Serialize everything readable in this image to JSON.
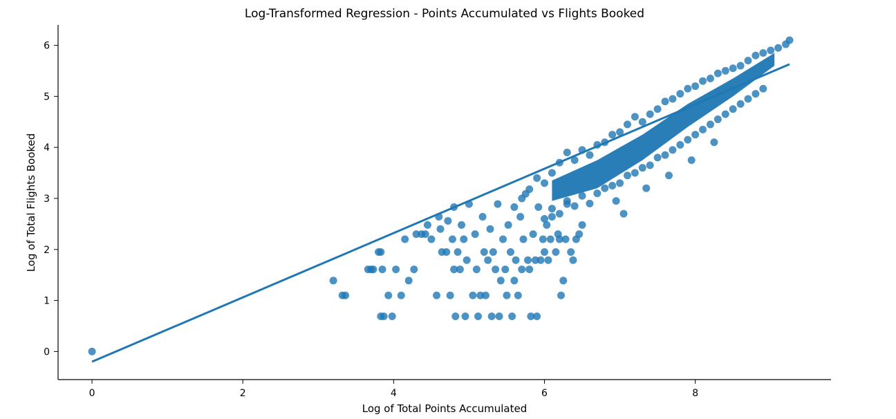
{
  "chart_data": {
    "type": "scatter",
    "title": "Log-Transformed Regression - Points Accumulated vs Flights Booked",
    "xlabel": "Log of Total Points Accumulated",
    "ylabel": "Log of Total Flights Booked",
    "xlim": [
      -0.45,
      9.8
    ],
    "ylim": [
      -0.55,
      6.4
    ],
    "x_ticks": [
      0,
      2,
      4,
      6,
      8
    ],
    "y_ticks": [
      0,
      1,
      2,
      3,
      4,
      5,
      6
    ],
    "grid": false,
    "legend": "none",
    "series": [
      {
        "marker_color": "#1f77b4",
        "marker_opacity": 0.8,
        "points": [
          [
            0,
            0
          ],
          [
            3.2,
            1.39
          ],
          [
            3.32,
            1.1
          ],
          [
            3.36,
            1.1
          ],
          [
            3.66,
            1.61
          ],
          [
            3.7,
            1.61
          ],
          [
            3.73,
            1.61
          ],
          [
            3.8,
            1.95
          ],
          [
            3.83,
            1.95
          ],
          [
            3.83,
            0.69
          ],
          [
            3.87,
            0.69
          ],
          [
            3.98,
            0.69
          ],
          [
            3.85,
            1.61
          ],
          [
            3.93,
            1.1
          ],
          [
            4.03,
            1.61
          ],
          [
            4.1,
            1.1
          ],
          [
            4.15,
            2.2
          ],
          [
            4.2,
            1.39
          ],
          [
            4.27,
            1.61
          ],
          [
            4.3,
            2.3
          ],
          [
            4.37,
            2.3
          ],
          [
            4.42,
            2.3
          ],
          [
            4.45,
            2.48
          ],
          [
            4.5,
            2.2
          ],
          [
            4.57,
            1.1
          ],
          [
            4.6,
            2.64
          ],
          [
            4.62,
            2.4
          ],
          [
            4.64,
            1.95
          ],
          [
            4.7,
            1.95
          ],
          [
            4.72,
            2.56
          ],
          [
            4.75,
            1.1
          ],
          [
            4.78,
            2.2
          ],
          [
            4.8,
            1.61
          ],
          [
            4.8,
            2.83
          ],
          [
            4.82,
            0.69
          ],
          [
            4.85,
            1.95
          ],
          [
            4.88,
            1.61
          ],
          [
            4.9,
            2.48
          ],
          [
            4.93,
            2.2
          ],
          [
            4.95,
            0.69
          ],
          [
            4.97,
            1.79
          ],
          [
            5.0,
            2.89
          ],
          [
            5.05,
            1.1
          ],
          [
            5.08,
            2.3
          ],
          [
            5.1,
            1.61
          ],
          [
            5.12,
            0.69
          ],
          [
            5.15,
            1.1
          ],
          [
            5.18,
            2.64
          ],
          [
            5.2,
            1.95
          ],
          [
            5.22,
            1.1
          ],
          [
            5.25,
            1.79
          ],
          [
            5.28,
            2.4
          ],
          [
            5.3,
            0.69
          ],
          [
            5.32,
            1.95
          ],
          [
            5.35,
            1.61
          ],
          [
            5.38,
            2.89
          ],
          [
            5.4,
            0.69
          ],
          [
            5.42,
            1.39
          ],
          [
            5.45,
            2.2
          ],
          [
            5.48,
            1.61
          ],
          [
            5.5,
            1.1
          ],
          [
            5.52,
            2.48
          ],
          [
            5.55,
            1.95
          ],
          [
            5.57,
            0.69
          ],
          [
            5.6,
            1.39
          ],
          [
            5.62,
            1.79
          ],
          [
            5.65,
            1.1
          ],
          [
            5.68,
            2.64
          ],
          [
            5.7,
            1.61
          ],
          [
            5.72,
            2.2
          ],
          [
            5.75,
            3.09
          ],
          [
            5.78,
            1.79
          ],
          [
            5.8,
            1.61
          ],
          [
            5.82,
            0.69
          ],
          [
            5.85,
            2.3
          ],
          [
            5.88,
            1.79
          ],
          [
            5.9,
            0.69
          ],
          [
            5.92,
            2.83
          ],
          [
            5.95,
            1.79
          ],
          [
            5.98,
            2.2
          ],
          [
            6.0,
            1.95
          ],
          [
            6.03,
            2.48
          ],
          [
            6.05,
            1.79
          ],
          [
            6.08,
            2.2
          ],
          [
            6.1,
            2.64
          ],
          [
            6.15,
            1.95
          ],
          [
            6.18,
            2.3
          ],
          [
            6.2,
            2.2
          ],
          [
            6.22,
            1.1
          ],
          [
            6.25,
            1.39
          ],
          [
            6.28,
            2.2
          ],
          [
            6.3,
            2.89
          ],
          [
            6.35,
            1.95
          ],
          [
            6.38,
            1.79
          ],
          [
            6.42,
            2.2
          ],
          [
            6.46,
            2.3
          ],
          [
            6.5,
            2.48
          ],
          [
            5.6,
            2.83
          ],
          [
            5.7,
            3.0
          ],
          [
            5.8,
            3.18
          ],
          [
            5.9,
            3.4
          ],
          [
            6.0,
            3.3
          ],
          [
            6.1,
            3.5
          ],
          [
            6.2,
            3.7
          ],
          [
            6.3,
            3.9
          ],
          [
            6.4,
            3.75
          ],
          [
            6.5,
            3.95
          ],
          [
            6.6,
            3.85
          ],
          [
            6.7,
            4.05
          ],
          [
            6.8,
            4.1
          ],
          [
            6.9,
            4.25
          ],
          [
            7.0,
            4.3
          ],
          [
            7.1,
            4.45
          ],
          [
            7.2,
            4.6
          ],
          [
            7.3,
            4.5
          ],
          [
            7.4,
            4.65
          ],
          [
            7.5,
            4.75
          ],
          [
            7.6,
            4.9
          ],
          [
            7.7,
            4.95
          ],
          [
            7.8,
            5.05
          ],
          [
            7.9,
            5.15
          ],
          [
            8.0,
            5.2
          ],
          [
            8.1,
            5.3
          ],
          [
            8.2,
            5.35
          ],
          [
            8.3,
            5.45
          ],
          [
            8.4,
            5.5
          ],
          [
            8.5,
            5.55
          ],
          [
            8.6,
            5.6
          ],
          [
            8.7,
            5.7
          ],
          [
            8.8,
            5.8
          ],
          [
            8.9,
            5.85
          ],
          [
            9.0,
            5.9
          ],
          [
            9.1,
            5.95
          ],
          [
            9.2,
            6.02
          ],
          [
            9.25,
            6.1
          ],
          [
            6.0,
            2.6
          ],
          [
            6.1,
            2.8
          ],
          [
            6.2,
            2.7
          ],
          [
            6.3,
            2.95
          ],
          [
            6.4,
            2.85
          ],
          [
            6.5,
            3.05
          ],
          [
            6.6,
            2.9
          ],
          [
            6.7,
            3.1
          ],
          [
            6.8,
            3.2
          ],
          [
            6.9,
            3.25
          ],
          [
            7.0,
            3.3
          ],
          [
            7.1,
            3.45
          ],
          [
            7.2,
            3.5
          ],
          [
            7.3,
            3.6
          ],
          [
            7.4,
            3.65
          ],
          [
            7.5,
            3.8
          ],
          [
            7.6,
            3.85
          ],
          [
            7.7,
            3.95
          ],
          [
            7.8,
            4.05
          ],
          [
            7.9,
            4.15
          ],
          [
            8.0,
            4.25
          ],
          [
            8.1,
            4.35
          ],
          [
            8.2,
            4.45
          ],
          [
            8.3,
            4.55
          ],
          [
            8.4,
            4.65
          ],
          [
            8.5,
            4.75
          ],
          [
            8.6,
            4.85
          ],
          [
            8.7,
            4.95
          ],
          [
            8.8,
            5.05
          ],
          [
            8.9,
            5.15
          ],
          [
            7.05,
            2.7
          ],
          [
            6.95,
            2.95
          ],
          [
            7.35,
            3.2
          ],
          [
            7.65,
            3.45
          ],
          [
            7.95,
            3.75
          ],
          [
            8.25,
            4.1
          ]
        ]
      }
    ],
    "regression": {
      "x": [
        0,
        9.25
      ],
      "y": [
        -0.2,
        5.63
      ],
      "color": "#1f77b4"
    }
  }
}
